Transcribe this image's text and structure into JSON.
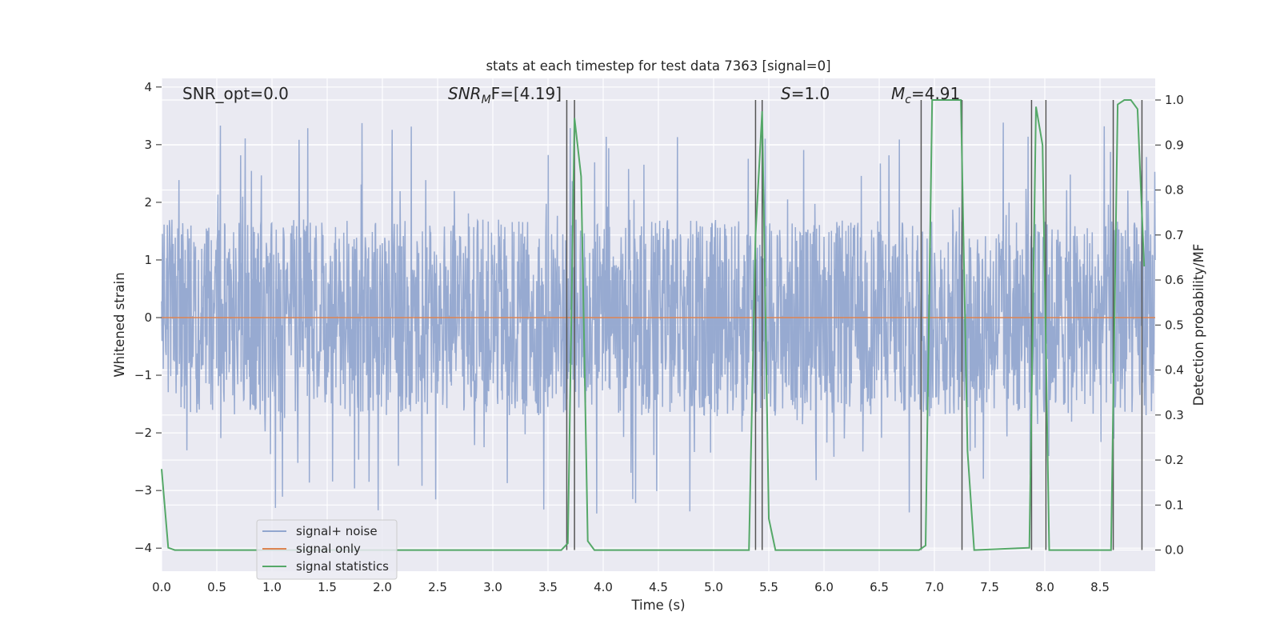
{
  "chart_data": {
    "type": "line",
    "title": "stats at each timestep for test data 7363 [signal=0]",
    "xlabel": "Time (s)",
    "ylabel": "Whitened strain",
    "y2label": "Detection probability/MF",
    "xlim": [
      0,
      9.0
    ],
    "ylim": [
      -4.4,
      4.15
    ],
    "y2lim": [
      -0.047,
      1.048
    ],
    "xticks": [
      "0.0",
      "0.5",
      "1.0",
      "1.5",
      "2.0",
      "2.5",
      "3.0",
      "3.5",
      "4.0",
      "4.5",
      "5.0",
      "5.5",
      "6.0",
      "6.5",
      "7.0",
      "7.5",
      "8.0",
      "8.5"
    ],
    "yticks": [
      "4",
      "3",
      "2",
      "1",
      "0",
      "−1",
      "−2",
      "−3",
      "−4"
    ],
    "y2ticks": [
      "1.0",
      "0.9",
      "0.8",
      "0.7",
      "0.6",
      "0.5",
      "0.4",
      "0.3",
      "0.2",
      "0.1",
      "0.0"
    ],
    "grid": true,
    "legend_position": "lower-left",
    "annotations": {
      "snr_opt": "SNR_opt=0.0",
      "snr_mf_main": "SNR",
      "snr_mf_sub": "M",
      "snr_mf_rest": "F=[4.19]",
      "s_main": "S",
      "s_rest": "=1.0",
      "mc_main": "M",
      "mc_sub": "c",
      "mc_rest": "=4.91"
    },
    "series": [
      {
        "name": "signal+ noise",
        "color": "#92a6cf",
        "description": "whitened noise, roughly ±1.7 with spikes up to about ±3.4",
        "amplitude": 1.7
      },
      {
        "name": "signal only",
        "color": "#dd8452",
        "x": [
          0,
          9.0
        ],
        "y": [
          0,
          0
        ]
      },
      {
        "name": "signal statistics",
        "color": "#55a868",
        "x": [
          0.0,
          0.06,
          0.12,
          3.62,
          3.68,
          3.74,
          3.8,
          3.86,
          3.92,
          3.98,
          5.32,
          5.38,
          5.44,
          5.5,
          5.56,
          6.86,
          6.92,
          6.98,
          7.24,
          7.3,
          7.36,
          7.86,
          7.92,
          7.98,
          8.04,
          8.6,
          8.66,
          8.72,
          8.78,
          8.84,
          8.9
        ],
        "y": [
          0.18,
          0.005,
          0.0,
          0.0,
          0.015,
          0.96,
          0.83,
          0.02,
          0.0,
          0.0,
          0.0,
          0.7,
          0.975,
          0.07,
          0.0,
          0.0,
          0.01,
          1.0,
          1.0,
          0.22,
          0.0,
          0.005,
          0.985,
          0.9,
          0.0,
          0.0,
          0.99,
          1.0,
          1.0,
          0.98,
          0.63
        ]
      }
    ],
    "vlines": [
      3.67,
      3.74,
      5.38,
      5.44,
      6.88,
      7.25,
      7.88,
      8.01,
      8.62,
      8.88
    ],
    "vline_color": "#555555"
  }
}
